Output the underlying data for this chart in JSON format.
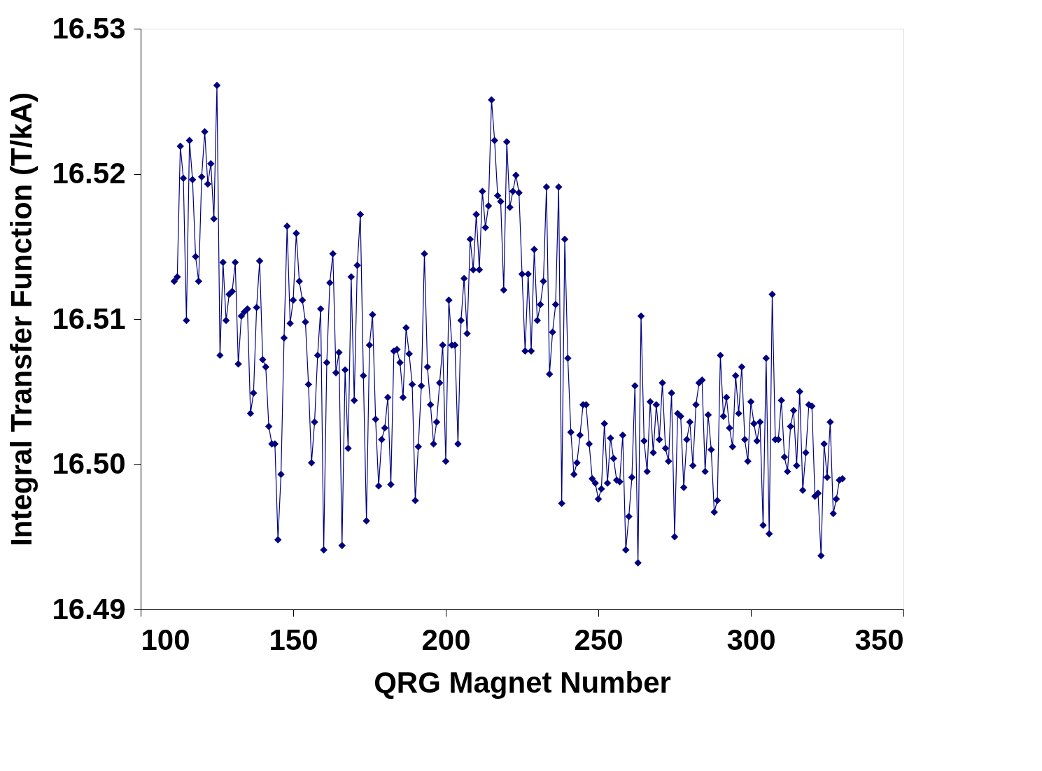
{
  "chart_data": {
    "type": "line",
    "xlabel": "QRG Magnet Number",
    "ylabel": "Integral Transfer Function (T/kA)",
    "marker": "diamond",
    "line_style": "solid",
    "grid": false,
    "xlim": [
      100,
      350
    ],
    "xticks": [
      100,
      150,
      200,
      250,
      300,
      350
    ],
    "ylim": [
      16.49,
      16.53
    ],
    "yticks": [
      16.49,
      16.51,
      16.52,
      16.53,
      {
        "value": 16.5,
        "label": "16.50"
      }
    ],
    "series": [
      {
        "color": "#000080",
        "x": [
          111,
          112,
          113,
          114,
          115,
          116,
          117,
          118,
          119,
          120,
          121,
          122,
          123,
          124,
          125,
          126,
          127,
          128,
          129,
          130,
          131,
          132,
          133,
          134,
          135,
          136,
          137,
          138,
          139,
          140,
          141,
          142,
          143,
          144,
          145,
          146,
          147,
          148,
          149,
          150,
          151,
          152,
          153,
          154,
          155,
          156,
          157,
          158,
          159,
          160,
          161,
          162,
          163,
          164,
          165,
          166,
          167,
          168,
          169,
          170,
          171,
          172,
          173,
          174,
          175,
          176,
          177,
          178,
          179,
          180,
          181,
          182,
          183,
          184,
          185,
          186,
          187,
          188,
          189,
          190,
          191,
          192,
          193,
          194,
          195,
          196,
          197,
          198,
          199,
          200,
          201,
          202,
          203,
          204,
          205,
          206,
          207,
          208,
          209,
          210,
          211,
          212,
          213,
          214,
          215,
          216,
          217,
          218,
          219,
          220,
          221,
          222,
          223,
          224,
          225,
          226,
          227,
          228,
          229,
          230,
          231,
          232,
          233,
          234,
          235,
          236,
          237,
          238,
          239,
          240,
          241,
          242,
          243,
          244,
          245,
          246,
          247,
          248,
          249,
          250,
          251,
          252,
          253,
          254,
          255,
          256,
          257,
          258,
          259,
          260,
          261,
          262,
          263,
          264,
          265,
          266,
          267,
          268,
          269,
          270,
          271,
          272,
          273,
          274,
          275,
          276,
          277,
          278,
          279,
          280,
          281,
          282,
          283,
          284,
          285,
          286,
          287,
          288,
          289,
          290,
          291,
          292,
          293,
          294,
          295,
          296,
          297,
          298,
          299,
          300,
          301,
          302,
          303,
          304,
          305,
          306,
          307,
          308,
          309,
          310,
          311,
          312,
          313,
          314,
          315,
          316,
          317,
          318,
          319,
          320,
          321,
          322,
          323,
          324,
          325,
          326,
          327,
          328,
          329,
          330
        ],
        "values": [
          16.5126,
          16.5129,
          16.5219,
          16.5197,
          16.5099,
          16.5223,
          16.5196,
          16.5143,
          16.5126,
          16.5198,
          16.5229,
          16.5193,
          16.5207,
          16.5169,
          16.5261,
          16.5075,
          16.5139,
          16.5099,
          16.5117,
          16.5119,
          16.5139,
          16.5069,
          16.5102,
          16.5105,
          16.5107,
          16.5035,
          16.5049,
          16.5108,
          16.514,
          16.5072,
          16.5067,
          16.5026,
          16.5014,
          16.5014,
          16.4948,
          16.4993,
          16.5087,
          16.5164,
          16.5097,
          16.5113,
          16.5159,
          16.5126,
          16.5113,
          16.5098,
          16.5055,
          16.5001,
          16.5029,
          16.5075,
          16.5107,
          16.4941,
          16.507,
          16.5125,
          16.5145,
          16.5063,
          16.5077,
          16.4944,
          16.5065,
          16.5011,
          16.5129,
          16.5044,
          16.5137,
          16.5172,
          16.5061,
          16.4961,
          16.5082,
          16.5103,
          16.5031,
          16.4985,
          16.5017,
          16.5025,
          16.5046,
          16.4986,
          16.5078,
          16.5079,
          16.507,
          16.5046,
          16.5094,
          16.5076,
          16.5055,
          16.4975,
          16.5012,
          16.5054,
          16.5145,
          16.5067,
          16.5041,
          16.5014,
          16.5029,
          16.5056,
          16.5082,
          16.5002,
          16.5113,
          16.5082,
          16.5082,
          16.5014,
          16.5099,
          16.5128,
          16.509,
          16.5155,
          16.5134,
          16.5172,
          16.5134,
          16.5188,
          16.5163,
          16.5178,
          16.5251,
          16.5223,
          16.5185,
          16.5181,
          16.512,
          16.5222,
          16.5177,
          16.5188,
          16.5199,
          16.5187,
          16.5131,
          16.5078,
          16.5131,
          16.5078,
          16.5148,
          16.5099,
          16.511,
          16.5126,
          16.5191,
          16.5062,
          16.5091,
          16.511,
          16.5191,
          16.4973,
          16.5155,
          16.5073,
          16.5022,
          16.4993,
          16.5001,
          16.502,
          16.5041,
          16.5041,
          16.5014,
          16.499,
          16.4987,
          16.4976,
          16.4983,
          16.5028,
          16.4987,
          16.5018,
          16.5004,
          16.4989,
          16.4988,
          16.502,
          16.4941,
          16.4964,
          16.4991,
          16.5054,
          16.4932,
          16.5102,
          16.5016,
          16.4995,
          16.5043,
          16.5008,
          16.5041,
          16.5017,
          16.5056,
          16.5011,
          16.5002,
          16.5049,
          16.495,
          16.5035,
          16.5033,
          16.4984,
          16.5017,
          16.5029,
          16.4999,
          16.5041,
          16.5056,
          16.5058,
          16.4995,
          16.5034,
          16.501,
          16.4967,
          16.4975,
          16.5075,
          16.5033,
          16.5046,
          16.5025,
          16.5012,
          16.5061,
          16.5035,
          16.5067,
          16.5017,
          16.5002,
          16.5043,
          16.5028,
          16.5016,
          16.5029,
          16.4958,
          16.5073,
          16.4952,
          16.5117,
          16.5017,
          16.5017,
          16.5044,
          16.5005,
          16.4995,
          16.5026,
          16.5037,
          16.4999,
          16.505,
          16.4982,
          16.5008,
          16.5041,
          16.504,
          16.4978,
          16.498,
          16.4937,
          16.5014,
          16.4991,
          16.5029,
          16.4966,
          16.4976,
          16.4989,
          16.499
        ]
      }
    ]
  }
}
